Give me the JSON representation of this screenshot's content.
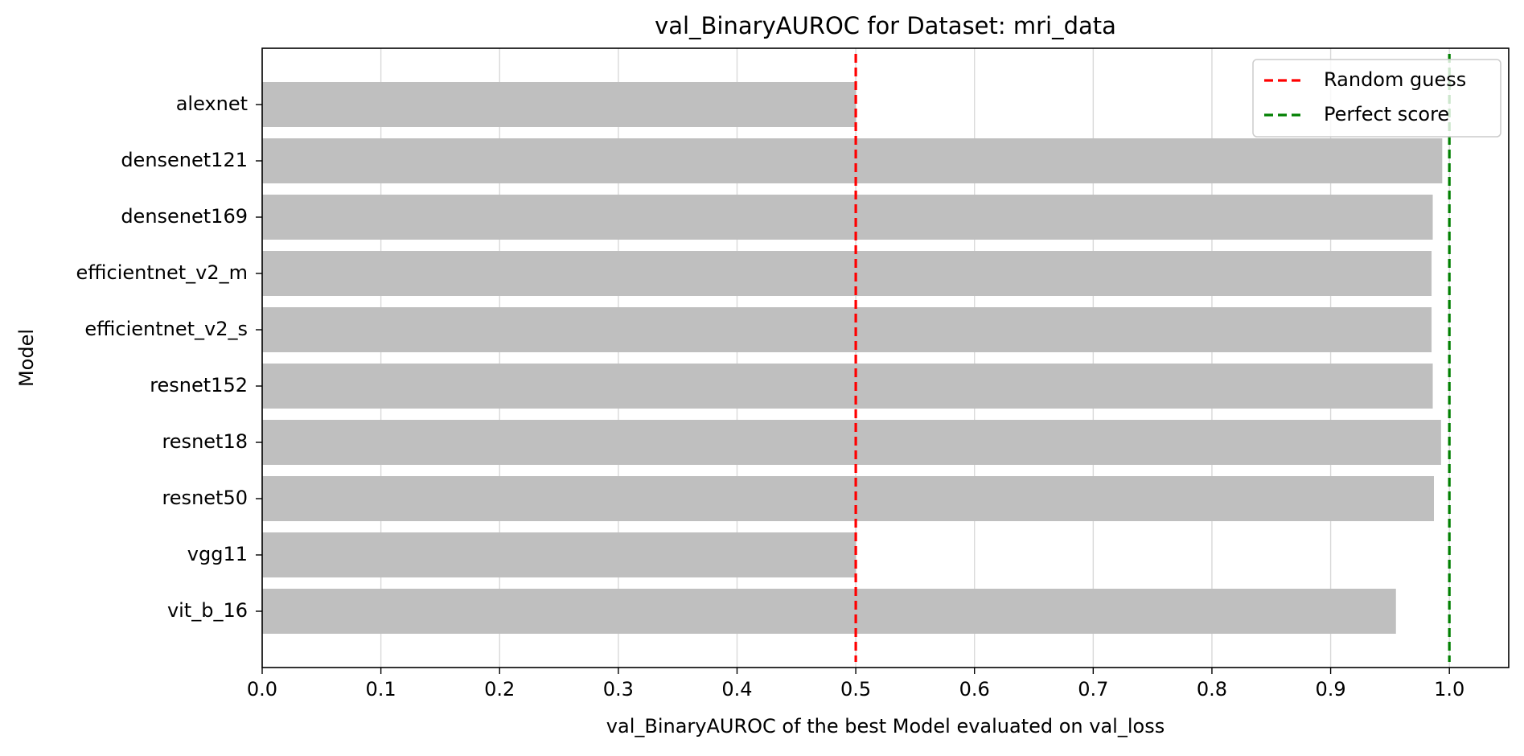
{
  "chart_data": {
    "type": "bar",
    "orientation": "horizontal",
    "title": "val_BinaryAUROC for Dataset: mri_data",
    "xlabel": "val_BinaryAUROC of the best Model evaluated on val_loss",
    "ylabel": "Model",
    "categories": [
      "alexnet",
      "densenet121",
      "densenet169",
      "efficientnet_v2_m",
      "efficientnet_v2_s",
      "resnet152",
      "resnet18",
      "resnet50",
      "vgg11",
      "vit_b_16"
    ],
    "values": [
      0.5,
      0.994,
      0.986,
      0.985,
      0.985,
      0.986,
      0.993,
      0.987,
      0.5,
      0.955
    ],
    "bar_color": "#bfbfbf",
    "xlim": [
      0.0,
      1.05
    ],
    "xticks": [
      0.0,
      0.1,
      0.2,
      0.3,
      0.4,
      0.5,
      0.6,
      0.7,
      0.8,
      0.9,
      1.0
    ],
    "xtick_labels": [
      "0.0",
      "0.1",
      "0.2",
      "0.3",
      "0.4",
      "0.5",
      "0.6",
      "0.7",
      "0.8",
      "0.9",
      "1.0"
    ],
    "grid": {
      "x": true,
      "y": false,
      "color": "#d9d9d9"
    },
    "reference_lines": [
      {
        "name": "Random guess",
        "value": 0.5,
        "color": "#ff0000",
        "style": "dashed"
      },
      {
        "name": "Perfect score",
        "value": 1.0,
        "color": "#008000",
        "style": "dashed"
      }
    ],
    "legend": {
      "location": "upper right",
      "entries": [
        "Random guess",
        "Perfect score"
      ]
    }
  }
}
